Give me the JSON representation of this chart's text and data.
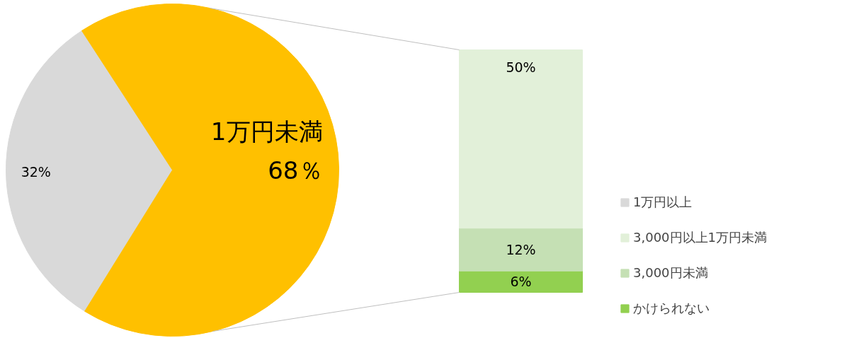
{
  "chart_data": [
    {
      "type": "pie",
      "categories": [
        "1万円以上",
        "1万円未満"
      ],
      "values": [
        32,
        68
      ],
      "colors": [
        "#d9d9d9",
        "#ffc000"
      ],
      "value_labels": [
        "32%",
        "68％"
      ],
      "legend": "right"
    },
    {
      "type": "bar",
      "stacked": true,
      "categories": [
        null
      ],
      "data_labels": true,
      "legend": "right",
      "series": [
        {
          "name": "かけられない",
          "color": "#92d050",
          "values": [
            6
          ],
          "value_labels": [
            "6%"
          ]
        },
        {
          "name": "3,000円未満",
          "color": "#c5e0b4",
          "values": [
            12
          ],
          "value_labels": [
            "12%"
          ]
        },
        {
          "name": "3,000円以上1万円未満",
          "color": "#e2f0d9",
          "values": [
            50
          ],
          "value_labels": [
            "50%"
          ]
        }
      ]
    }
  ]
}
